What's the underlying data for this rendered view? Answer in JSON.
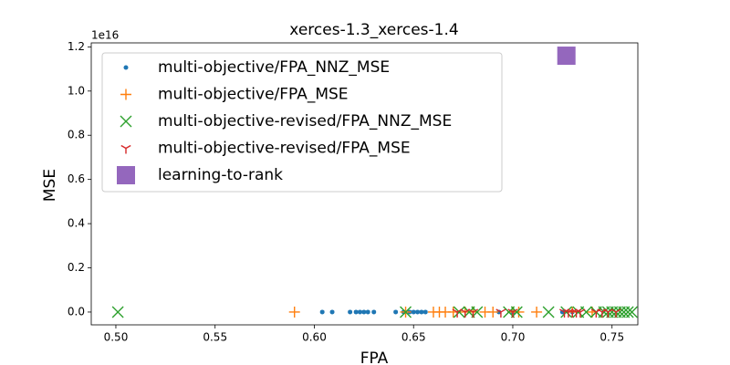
{
  "chart_data": {
    "type": "scatter",
    "title": "xerces-1.3_xerces-1.4",
    "x_label": "FPA",
    "y_label": "MSE",
    "y_offset_label": "1e16",
    "xlim": [
      0.4876,
      0.763
    ],
    "ylim": [
      -0.058,
      1.218
    ],
    "xticks": [
      {
        "value": 0.5,
        "label": "0.50"
      },
      {
        "value": 0.55,
        "label": "0.55"
      },
      {
        "value": 0.6,
        "label": "0.60"
      },
      {
        "value": 0.65,
        "label": "0.65"
      },
      {
        "value": 0.7,
        "label": "0.70"
      },
      {
        "value": 0.75,
        "label": "0.75"
      }
    ],
    "yticks": [
      {
        "value": 0,
        "label": "0.0"
      },
      {
        "value": 0.2,
        "label": "0.2"
      },
      {
        "value": 0.4,
        "label": "0.4"
      },
      {
        "value": 0.6,
        "label": "0.6"
      },
      {
        "value": 0.8,
        "label": "0.8"
      },
      {
        "value": 1,
        "label": "1.0"
      },
      {
        "value": 1.2,
        "label": "1.2"
      }
    ],
    "legend": "upper left",
    "series": [
      {
        "name": "multi-objective/FPA_NNZ_MSE",
        "color": "#1f77b4",
        "marker": "circle",
        "x": [
          0.604,
          0.609,
          0.618,
          0.621,
          0.623,
          0.625,
          0.627,
          0.63,
          0.641,
          0.645,
          0.648,
          0.65,
          0.652,
          0.654,
          0.656,
          0.693,
          0.7,
          0.725,
          0.73
        ],
        "y": [
          0,
          0,
          0,
          0,
          0,
          0,
          0,
          0,
          0,
          0,
          0,
          0,
          0,
          0,
          0,
          0,
          0,
          0,
          0
        ]
      },
      {
        "name": "multi-objective/FPA_MSE",
        "color": "#ff7f0e",
        "marker": "plus",
        "x": [
          0.59,
          0.646,
          0.66,
          0.663,
          0.666,
          0.67,
          0.676,
          0.68,
          0.686,
          0.69,
          0.7,
          0.703,
          0.712,
          0.73,
          0.74
        ],
        "y": [
          0,
          0,
          0,
          0,
          0,
          0,
          0,
          0,
          0,
          0,
          0,
          0,
          0,
          0,
          0
        ]
      },
      {
        "name": "multi-objective-revised/FPA_NNZ_MSE",
        "color": "#2ca02c",
        "marker": "x",
        "x": [
          0.501,
          0.646,
          0.673,
          0.678,
          0.682,
          0.698,
          0.702,
          0.718,
          0.727,
          0.733,
          0.737,
          0.742,
          0.746,
          0.748,
          0.75,
          0.752,
          0.754,
          0.756,
          0.758,
          0.76
        ],
        "y": [
          0,
          0,
          0,
          0,
          0,
          0,
          0,
          0,
          0,
          0,
          0,
          0,
          0,
          0,
          0,
          0,
          0,
          0,
          0,
          0
        ]
      },
      {
        "name": "multi-objective-revised/FPA_MSE",
        "color": "#d62728",
        "marker": "tri_down",
        "x": [
          0.672,
          0.676,
          0.68,
          0.694,
          0.7,
          0.726,
          0.728,
          0.73,
          0.732,
          0.734,
          0.742,
          0.745,
          0.748,
          0.752
        ],
        "y": [
          0,
          0,
          0,
          0,
          0,
          0,
          0,
          0,
          0,
          0,
          0,
          0,
          0,
          0
        ]
      },
      {
        "name": "learning-to-rank",
        "color": "#9467bd",
        "marker": "square",
        "x": [
          0.727
        ],
        "y": [
          1.16
        ]
      }
    ]
  }
}
